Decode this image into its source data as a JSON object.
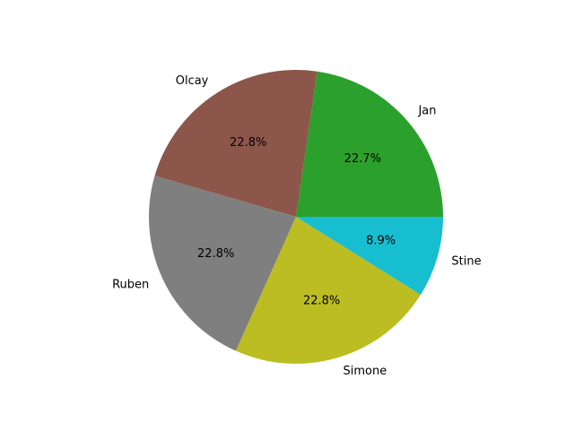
{
  "chart_data": {
    "type": "pie",
    "title": "",
    "slices": [
      {
        "label": "Jan",
        "value": 22.7,
        "pct_text": "22.7%",
        "color": "#2ca02c"
      },
      {
        "label": "Olcay",
        "value": 22.8,
        "pct_text": "22.8%",
        "color": "#8c564b"
      },
      {
        "label": "Ruben",
        "value": 22.8,
        "pct_text": "22.8%",
        "color": "#7f7f7f"
      },
      {
        "label": "Simone",
        "value": 22.8,
        "pct_text": "22.8%",
        "color": "#bcbd22"
      },
      {
        "label": "Stine",
        "value": 8.9,
        "pct_text": "8.9%",
        "color": "#17becf"
      }
    ],
    "start_angle_deg": 0,
    "direction": "counterclockwise",
    "legend": "none"
  }
}
